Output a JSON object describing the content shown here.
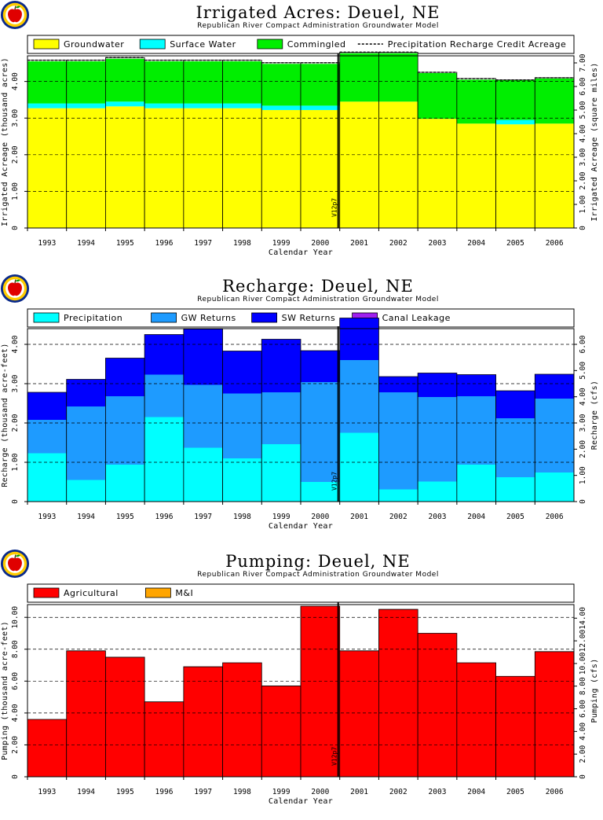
{
  "colors": {
    "groundwater": "#ffff00",
    "surface_water": "#00ffff",
    "commingled": "#00ee00",
    "precipitation": "#00ffff",
    "gw_returns": "#1e9bff",
    "sw_returns": "#0000ff",
    "canal_leakage": "#a020f0",
    "agricultural": "#ff0000",
    "mi": "#ffa500"
  },
  "vline_label": "V12p7",
  "chart_data": [
    {
      "type": "bar",
      "stacked": true,
      "title": "Irrigated Acres: Deuel, NE",
      "subtitle": "Republican River Compact Administration Groundwater Model",
      "xlabel": "Calendar Year",
      "ylabel": "Irrigated Acreage (thousand acres)",
      "ylabel_right": "Irrigated Acreage (square miles)",
      "categories": [
        "1993",
        "1994",
        "1995",
        "1996",
        "1997",
        "1998",
        "1999",
        "2000",
        "2001",
        "2002",
        "2003",
        "2004",
        "2005",
        "2006"
      ],
      "ylim": [
        0,
        4.7
      ],
      "yticks": [
        "0",
        "1.00",
        "2.00",
        "3.00",
        "4.00"
      ],
      "yticks_right": [
        "0",
        "1.00",
        "2.00",
        "3.00",
        "4.00",
        "5.00",
        "6.00",
        "7.00"
      ],
      "grid": true,
      "legend_placement": "top",
      "series": [
        {
          "name": "Groundwater",
          "color": "groundwater",
          "values": [
            3.27,
            3.27,
            3.32,
            3.27,
            3.27,
            3.27,
            3.22,
            3.22,
            3.45,
            3.45,
            2.98,
            2.85,
            2.83,
            2.85
          ]
        },
        {
          "name": "Surface Water",
          "color": "surface_water",
          "values": [
            0.13,
            0.13,
            0.13,
            0.13,
            0.13,
            0.13,
            0.12,
            0.12,
            0,
            0,
            0,
            0,
            0.12,
            0
          ]
        },
        {
          "name": "Commingled",
          "color": "commingled",
          "values": [
            1.15,
            1.15,
            1.17,
            1.15,
            1.15,
            1.15,
            1.14,
            1.14,
            1.32,
            1.32,
            1.25,
            1.2,
            1.09,
            1.23
          ]
        }
      ],
      "line_series": {
        "name": "Precipitation Recharge Credit Acreage",
        "values": [
          4.58,
          4.58,
          4.65,
          4.58,
          4.58,
          4.58,
          4.51,
          4.51,
          4.8,
          4.8,
          4.25,
          4.08,
          4.04,
          4.1
        ]
      }
    },
    {
      "type": "bar",
      "stacked": true,
      "title": "Recharge: Deuel, NE",
      "subtitle": "Republican River Compact Administration Groundwater Model",
      "xlabel": "Calendar Year",
      "ylabel": "Recharge (thousand acre-feet)",
      "ylabel_right": "Recharge (cfs)",
      "categories": [
        "1993",
        "1994",
        "1995",
        "1996",
        "1997",
        "1998",
        "1999",
        "2000",
        "2001",
        "2002",
        "2003",
        "2004",
        "2005",
        "2006"
      ],
      "ylim": [
        0,
        4.4
      ],
      "yticks": [
        "0",
        "1.00",
        "2.00",
        "3.00",
        "4.00"
      ],
      "yticks_right": [
        "0",
        "1.00",
        "2.00",
        "3.00",
        "4.00",
        "5.00",
        "6.00"
      ],
      "grid": true,
      "legend_placement": "top",
      "series": [
        {
          "name": "Precipitation",
          "color": "precipitation",
          "values": [
            1.23,
            0.55,
            0.94,
            2.15,
            1.37,
            1.1,
            1.46,
            0.5,
            1.75,
            0.31,
            0.51,
            0.94,
            0.62,
            0.74
          ]
        },
        {
          "name": "GW Returns",
          "color": "gw_returns",
          "values": [
            0.85,
            1.87,
            1.74,
            1.08,
            1.6,
            1.65,
            1.32,
            2.54,
            1.85,
            2.47,
            2.15,
            1.74,
            1.5,
            1.88
          ]
        },
        {
          "name": "SW Returns",
          "color": "sw_returns",
          "values": [
            0.7,
            0.69,
            0.97,
            1.02,
            1.42,
            1.08,
            1.35,
            0.8,
            1.07,
            0.4,
            0.61,
            0.55,
            0.7,
            0.62
          ]
        },
        {
          "name": "Canal Leakage",
          "color": "canal_leakage",
          "values": [
            0,
            0,
            0,
            0,
            0,
            0,
            0,
            0,
            0,
            0,
            0,
            0,
            0,
            0
          ]
        }
      ]
    },
    {
      "type": "bar",
      "stacked": true,
      "title": "Pumping: Deuel, NE",
      "subtitle": "Republican River Compact Administration Groundwater Model",
      "xlabel": "Calendar Year",
      "ylabel": "Pumping (thousand acre-feet)",
      "ylabel_right": "Pumping (cfs)",
      "categories": [
        "1993",
        "1994",
        "1995",
        "1996",
        "1997",
        "1998",
        "1999",
        "2000",
        "2001",
        "2002",
        "2003",
        "2004",
        "2005",
        "2006"
      ],
      "ylim": [
        0,
        10.8
      ],
      "yticks": [
        "0",
        "2.00",
        "4.00",
        "6.00",
        "8.00",
        "10.00"
      ],
      "yticks_right": [
        "0",
        "2.00",
        "4.00",
        "6.00",
        "8.00",
        "10.00",
        "12.00",
        "14.00"
      ],
      "grid": true,
      "legend_placement": "top",
      "series": [
        {
          "name": "Agricultural",
          "color": "agricultural",
          "values": [
            3.6,
            7.9,
            7.5,
            4.7,
            6.9,
            7.15,
            5.7,
            10.7,
            7.9,
            10.5,
            9.0,
            7.15,
            6.3,
            7.85
          ]
        },
        {
          "name": "M&I",
          "color": "mi",
          "values": [
            0,
            0,
            0,
            0,
            0,
            0,
            0,
            0,
            0,
            0,
            0,
            0,
            0,
            0
          ]
        }
      ]
    }
  ]
}
